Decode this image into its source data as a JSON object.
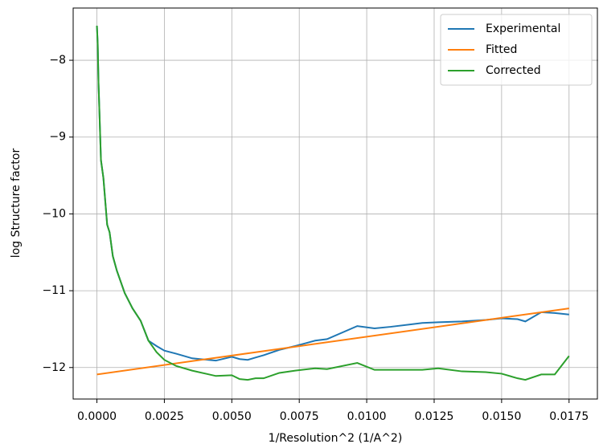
{
  "chart_data": {
    "type": "line",
    "xlabel": "1/Resolution^2 (1/A^2)",
    "ylabel": "log Structure factor",
    "x": [
      0,
      3e-05,
      6e-05,
      0.00015,
      0.00024,
      0.00038,
      0.00047,
      0.00059,
      0.00074,
      0.00103,
      0.00132,
      0.00162,
      0.00191,
      0.00221,
      0.0025,
      0.00294,
      0.00353,
      0.00441,
      0.005,
      0.00529,
      0.00559,
      0.00588,
      0.00618,
      0.00676,
      0.00735,
      0.00809,
      0.00853,
      0.00965,
      0.01029,
      0.01088,
      0.01206,
      0.01265,
      0.01353,
      0.01441,
      0.015,
      0.01559,
      0.01588,
      0.01647,
      0.01697,
      0.0175
    ],
    "series": [
      {
        "name": "Experimental",
        "color": "#1f77b4",
        "values": [
          -7.55,
          -7.79,
          -8.3,
          -9.3,
          -9.53,
          -10.14,
          -10.24,
          -10.55,
          -10.74,
          -11.03,
          -11.23,
          -11.39,
          -11.65,
          -11.72,
          -11.78,
          -11.82,
          -11.88,
          -11.91,
          -11.86,
          -11.89,
          -11.9,
          -11.87,
          -11.84,
          -11.77,
          -11.72,
          -11.65,
          -11.63,
          -11.46,
          -11.49,
          -11.47,
          -11.42,
          -11.41,
          -11.4,
          -11.38,
          -11.36,
          -11.37,
          -11.4,
          -11.28,
          -11.29,
          -11.31
        ]
      },
      {
        "name": "Fitted",
        "color": "#ff7f0e",
        "x": [
          0,
          0.0175
        ],
        "values": [
          -12.09,
          -11.23
        ]
      },
      {
        "name": "Corrected",
        "color": "#2ca02c",
        "values": [
          -7.55,
          -7.79,
          -8.3,
          -9.3,
          -9.53,
          -10.14,
          -10.24,
          -10.55,
          -10.74,
          -11.03,
          -11.23,
          -11.39,
          -11.65,
          -11.8,
          -11.9,
          -11.98,
          -12.04,
          -12.11,
          -12.1,
          -12.15,
          -12.16,
          -12.14,
          -12.14,
          -12.07,
          -12.04,
          -12.01,
          -12.02,
          -11.94,
          -12.03,
          -12.03,
          -12.03,
          -12.01,
          -12.05,
          -12.06,
          -12.08,
          -12.14,
          -12.16,
          -12.09,
          -12.09,
          -11.85
        ]
      }
    ],
    "xlim": [
      -0.00088,
      0.01858
    ],
    "ylim": [
      -12.41,
      -7.32
    ],
    "xticks": [
      {
        "value": 0,
        "label": "0.0000"
      },
      {
        "value": 0.0025,
        "label": "0.0025"
      },
      {
        "value": 0.005,
        "label": "0.0050"
      },
      {
        "value": 0.0075,
        "label": "0.0075"
      },
      {
        "value": 0.01,
        "label": "0.0100"
      },
      {
        "value": 0.0125,
        "label": "0.0125"
      },
      {
        "value": 0.015,
        "label": "0.0150"
      },
      {
        "value": 0.0175,
        "label": "0.0175"
      }
    ],
    "yticks": [
      {
        "value": -12,
        "label": "−12"
      },
      {
        "value": -11,
        "label": "−11"
      },
      {
        "value": -10,
        "label": "−10"
      },
      {
        "value": -9,
        "label": "−9"
      },
      {
        "value": -8,
        "label": "−8"
      }
    ],
    "grid": true,
    "legend": "upper right"
  }
}
